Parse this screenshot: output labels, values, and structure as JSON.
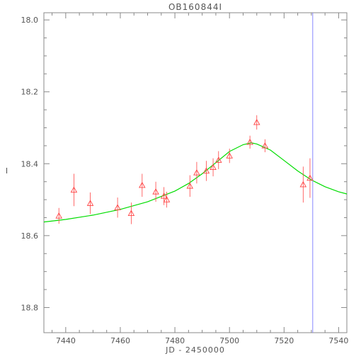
{
  "chart_data": {
    "type": "scatter",
    "title": "OB160844I",
    "xlabel": "JD - 2450000",
    "ylabel": "I",
    "xlim": [
      7432,
      7543
    ],
    "ylim": [
      18.87,
      17.98
    ],
    "y_inverted": true,
    "grid": false,
    "x_ticks": [
      "7440",
      "7460",
      "7480",
      "7500",
      "7520",
      "7540"
    ],
    "x_tick_values": [
      7440,
      7460,
      7480,
      7500,
      7520,
      7540
    ],
    "y_ticks": [
      "18.0",
      "18.2",
      "18.4",
      "18.6",
      "18.8"
    ],
    "y_tick_values": [
      18.0,
      18.2,
      18.4,
      18.6,
      18.8
    ],
    "colors": {
      "points": "#ff4444",
      "model": "#00dd00",
      "marker_line": "#8888ff",
      "frame": "#888888",
      "text": "#555555"
    },
    "observations": [
      {
        "x": 7437.5,
        "y": 18.545,
        "err": 0.022
      },
      {
        "x": 7443.0,
        "y": 18.473,
        "err": 0.045
      },
      {
        "x": 7449.0,
        "y": 18.51,
        "err": 0.03
      },
      {
        "x": 7459.0,
        "y": 18.522,
        "err": 0.028
      },
      {
        "x": 7464.0,
        "y": 18.538,
        "err": 0.03
      },
      {
        "x": 7468.0,
        "y": 18.46,
        "err": 0.032
      },
      {
        "x": 7473.0,
        "y": 18.478,
        "err": 0.028
      },
      {
        "x": 7476.0,
        "y": 18.49,
        "err": 0.025
      },
      {
        "x": 7477.0,
        "y": 18.5,
        "err": 0.022
      },
      {
        "x": 7485.5,
        "y": 18.462,
        "err": 0.03
      },
      {
        "x": 7488.0,
        "y": 18.425,
        "err": 0.03
      },
      {
        "x": 7491.5,
        "y": 18.42,
        "err": 0.028
      },
      {
        "x": 7494.0,
        "y": 18.41,
        "err": 0.025
      },
      {
        "x": 7496.0,
        "y": 18.39,
        "err": 0.025
      },
      {
        "x": 7500.0,
        "y": 18.378,
        "err": 0.02
      },
      {
        "x": 7507.5,
        "y": 18.34,
        "err": 0.018
      },
      {
        "x": 7510.0,
        "y": 18.285,
        "err": 0.02
      },
      {
        "x": 7513.0,
        "y": 18.35,
        "err": 0.018
      },
      {
        "x": 7527.0,
        "y": 18.458,
        "err": 0.05
      },
      {
        "x": 7529.5,
        "y": 18.44,
        "err": 0.055
      }
    ],
    "model_curve": {
      "x": [
        7432,
        7440,
        7450,
        7460,
        7470,
        7480,
        7485,
        7490,
        7495,
        7500,
        7505,
        7508,
        7510,
        7515,
        7520,
        7525,
        7530,
        7535,
        7540,
        7543
      ],
      "y": [
        18.562,
        18.555,
        18.543,
        18.527,
        18.506,
        18.476,
        18.455,
        18.428,
        18.397,
        18.366,
        18.347,
        18.342,
        18.345,
        18.362,
        18.391,
        18.42,
        18.445,
        18.464,
        18.478,
        18.484
      ]
    },
    "vertical_marker_x": 7530.5
  }
}
